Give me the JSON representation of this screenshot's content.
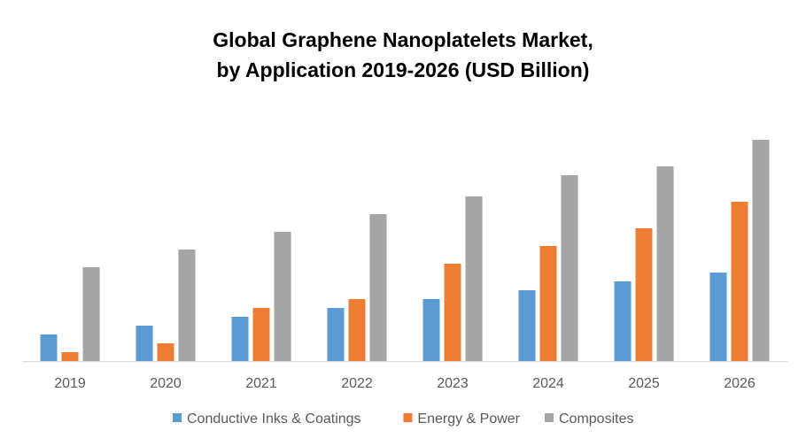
{
  "chart_data": {
    "type": "bar",
    "title_line1": "Global Graphene Nanoplatelets Market,",
    "title_line2": "by Application 2019-2026 (USD Billion)",
    "xlabel": "",
    "ylabel": "",
    "categories": [
      "2019",
      "2020",
      "2021",
      "2022",
      "2023",
      "2024",
      "2025",
      "2026"
    ],
    "series": [
      {
        "name": "Conductive Inks & Coatings",
        "color": "#5B9BD5",
        "values": [
          1.5,
          2.0,
          2.5,
          3.0,
          3.5,
          4.0,
          4.5,
          5.0
        ]
      },
      {
        "name": "Energy & Power",
        "color": "#ED7D31",
        "values": [
          0.5,
          1.0,
          3.0,
          3.5,
          5.5,
          6.5,
          7.5,
          9.0
        ]
      },
      {
        "name": "Composites",
        "color": "#A5A5A5",
        "values": [
          5.3,
          6.3,
          7.3,
          8.3,
          9.3,
          10.5,
          11.0,
          12.5
        ]
      }
    ],
    "ylim": [
      0,
      14
    ],
    "grid": false,
    "legend_position": "bottom",
    "axis_color": "#D9D9D9"
  }
}
